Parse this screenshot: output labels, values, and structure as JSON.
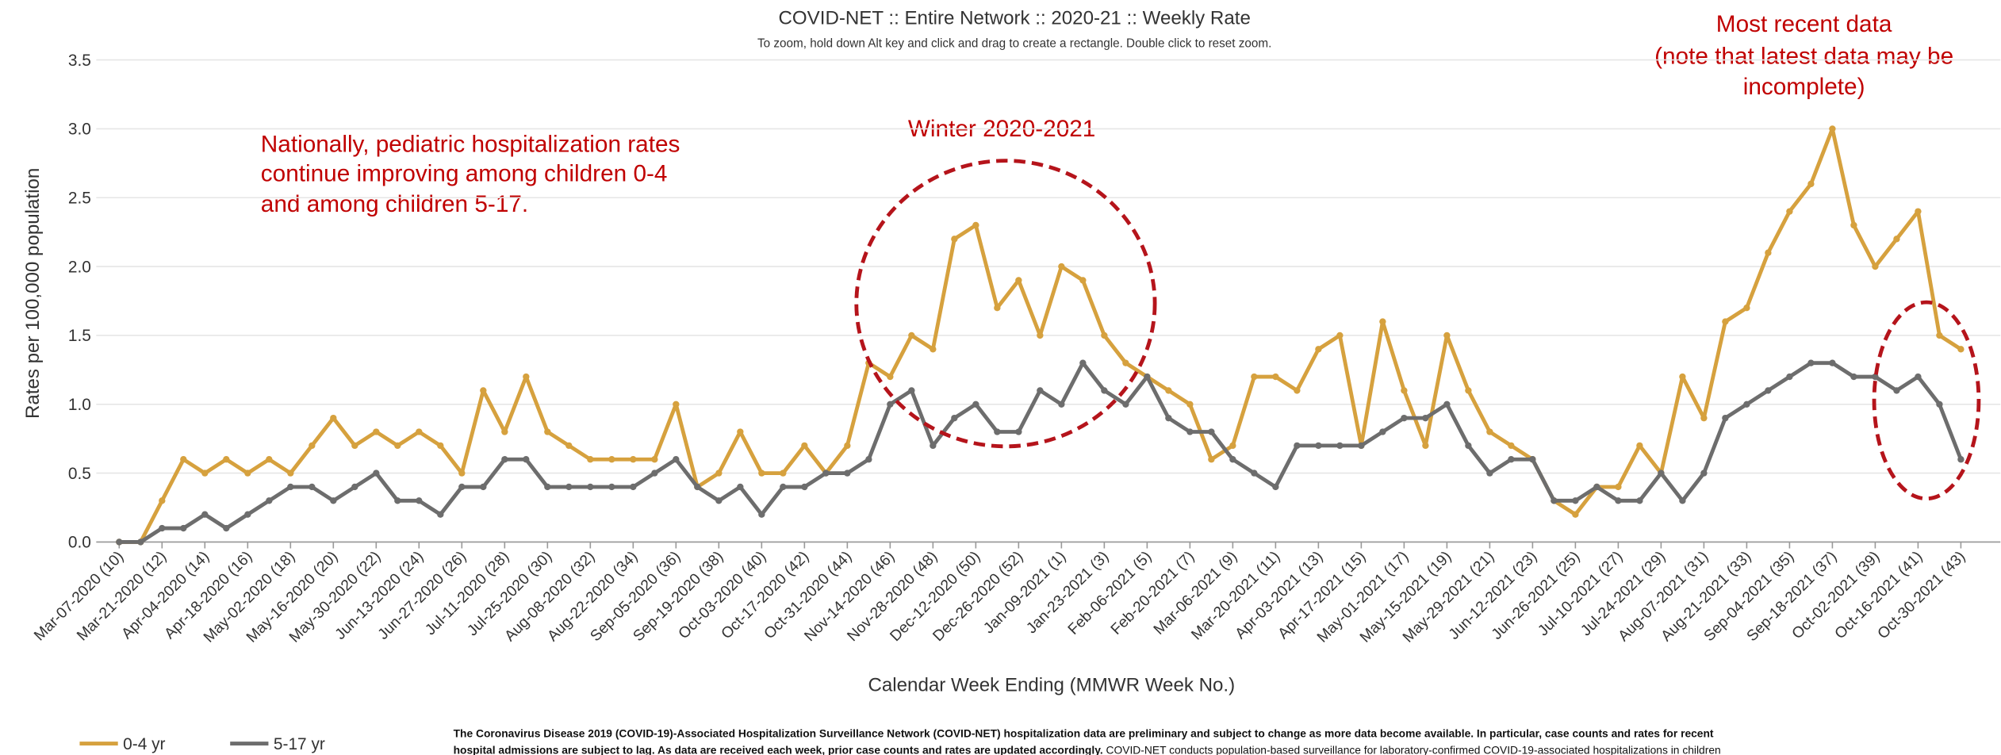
{
  "chart_data": {
    "type": "line",
    "title": "COVID-NET :: Entire Network :: 2020-21 :: Weekly Rate",
    "subtitle": "To zoom, hold down Alt key and click and drag to create a rectangle. Double click to reset zoom.",
    "x_label": "Calendar Week Ending (MMWR Week No.)",
    "y_label": "Rates per 100,000 population",
    "annotations": [
      "Nationally, pediatric hospitalization rates",
      "continue improving among children 0-4",
      "and among children 5-17.",
      "Winter 2020-2021",
      "Most recent data",
      "(note that latest data may be",
      "incomplete)"
    ],
    "footnote": [
      "The Coronavirus Disease 2019 (COVID-19)-Associated Hospitalization Surveillance Network (COVID-NET) hospitalization data are preliminary and subject to change as more data become available. In particular, case counts and rates for recent",
      "hospital admissions are subject to lag. As data are received each week, prior case counts and rates are updated accordingly.",
      "COVID-NET conducts population-based surveillance for laboratory-confirmed COVID-19-associated hospitalizations in children"
    ],
    "categories": [
      "Mar-07-2020 (10)",
      null,
      "Mar-21-2020 (12)",
      null,
      "Apr-04-2020 (14)",
      null,
      "Apr-18-2020 (16)",
      null,
      "May-02-2020 (18)",
      null,
      "May-16-2020 (20)",
      null,
      "May-30-2020 (22)",
      null,
      "Jun-13-2020 (24)",
      null,
      "Jun-27-2020 (26)",
      null,
      "Jul-11-2020 (28)",
      null,
      "Jul-25-2020 (30)",
      null,
      "Aug-08-2020 (32)",
      null,
      "Aug-22-2020 (34)",
      null,
      "Sep-05-2020 (36)",
      null,
      "Sep-19-2020 (38)",
      null,
      "Oct-03-2020 (40)",
      null,
      "Oct-17-2020 (42)",
      null,
      "Oct-31-2020 (44)",
      null,
      "Nov-14-2020 (46)",
      null,
      "Nov-28-2020 (48)",
      null,
      "Dec-12-2020 (50)",
      null,
      "Dec-26-2020 (52)",
      null,
      "Jan-09-2021 (1)",
      null,
      "Jan-23-2021 (3)",
      null,
      "Feb-06-2021 (5)",
      null,
      "Feb-20-2021 (7)",
      null,
      "Mar-06-2021 (9)",
      null,
      "Mar-20-2021 (11)",
      null,
      "Apr-03-2021 (13)",
      null,
      "Apr-17-2021 (15)",
      null,
      "May-01-2021 (17)",
      null,
      "May-15-2021 (19)",
      null,
      "May-29-2021 (21)",
      null,
      "Jun-12-2021 (23)",
      null,
      "Jun-26-2021 (25)",
      null,
      "Jul-10-2021 (27)",
      null,
      "Jul-24-2021 (29)",
      null,
      "Aug-07-2021 (31)",
      null,
      "Aug-21-2021 (33)",
      null,
      "Sep-04-2021 (35)",
      null,
      "Sep-18-2021 (37)",
      null,
      "Oct-02-2021 (39)",
      null,
      "Oct-16-2021 (41)",
      null,
      "Oct-30-2021 (43)"
    ],
    "series": [
      {
        "name": "0-4 yr",
        "color": "#d6a13e",
        "values": [
          0,
          0,
          0.3,
          0.6,
          0.5,
          0.6,
          0.5,
          0.6,
          0.5,
          0.7,
          0.9,
          0.7,
          0.8,
          0.7,
          0.8,
          0.7,
          0.5,
          1.1,
          0.8,
          1.2,
          0.8,
          0.7,
          0.6,
          0.6,
          0.6,
          0.6,
          1.0,
          0.4,
          0.5,
          0.8,
          0.5,
          0.5,
          0.7,
          0.5,
          0.7,
          1.3,
          1.2,
          1.5,
          1.4,
          2.2,
          2.3,
          1.7,
          1.9,
          1.5,
          2.0,
          1.9,
          1.5,
          1.3,
          1.2,
          1.1,
          1.0,
          0.6,
          0.7,
          1.2,
          1.2,
          1.1,
          1.4,
          1.5,
          0.7,
          1.6,
          1.1,
          0.7,
          1.5,
          1.1,
          0.8,
          0.7,
          0.6,
          0.3,
          0.2,
          0.4,
          0.4,
          0.7,
          0.5,
          1.2,
          0.9,
          1.6,
          1.7,
          2.1,
          2.4,
          2.6,
          3.0,
          2.3,
          2.0,
          2.2,
          2.4,
          1.5,
          1.4
        ]
      },
      {
        "name": "5-17 yr",
        "color": "#6d6d6d",
        "values": [
          0,
          0,
          0.1,
          0.1,
          0.2,
          0.1,
          0.2,
          0.3,
          0.4,
          0.4,
          0.3,
          0.4,
          0.5,
          0.3,
          0.3,
          0.2,
          0.4,
          0.4,
          0.6,
          0.6,
          0.4,
          0.4,
          0.4,
          0.4,
          0.4,
          0.5,
          0.6,
          0.4,
          0.3,
          0.4,
          0.2,
          0.4,
          0.4,
          0.5,
          0.5,
          0.6,
          1.0,
          1.1,
          0.7,
          0.9,
          1.0,
          0.8,
          0.8,
          1.1,
          1.0,
          1.3,
          1.1,
          1.0,
          1.2,
          0.9,
          0.8,
          0.8,
          0.6,
          0.5,
          0.4,
          0.7,
          0.7,
          0.7,
          0.7,
          0.8,
          0.9,
          0.9,
          1.0,
          0.7,
          0.5,
          0.6,
          0.6,
          0.3,
          0.3,
          0.4,
          0.3,
          0.3,
          0.5,
          0.3,
          0.5,
          0.9,
          1.0,
          1.1,
          1.2,
          1.3,
          1.3,
          1.2,
          1.2,
          1.1,
          1.2,
          1.0,
          0.6
        ]
      }
    ],
    "ylim": [
      0,
      3.5
    ],
    "yticks": [
      {
        "value": 0,
        "label": "0.0"
      },
      0.5,
      {
        "value": 1,
        "label": "1.0"
      },
      1.5,
      {
        "value": 2,
        "label": "2.0"
      },
      2.5,
      {
        "value": 3,
        "label": "3.0"
      },
      3.5
    ],
    "grid": true,
    "legend": "bottom-left"
  }
}
